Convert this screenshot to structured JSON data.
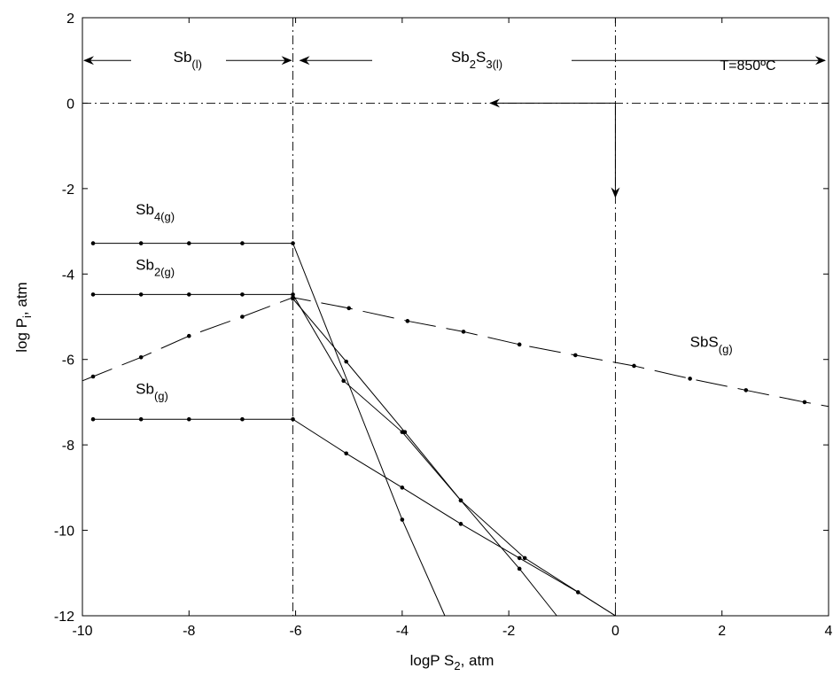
{
  "chart_data": {
    "type": "line",
    "title": "",
    "xlabel": "logP S",
    "xlabel_sub": "2",
    "xlabel_suffix": ", atm",
    "ylabel": "log  P",
    "ylabel_sub": "i",
    "ylabel_suffix": ", atm",
    "xlim": [
      -10,
      4
    ],
    "ylim": [
      -12,
      2
    ],
    "xticks": [
      -10,
      -8,
      -6,
      -4,
      -2,
      0,
      2,
      4
    ],
    "yticks": [
      -12,
      -10,
      -8,
      -6,
      -4,
      -2,
      0,
      2
    ],
    "xtick_labels": [
      "-10",
      "-8",
      "-6",
      "-4",
      "-2",
      "0",
      "2",
      "4"
    ],
    "ytick_labels": [
      "-12",
      "-10",
      "-8",
      "-6",
      "-4",
      "-2",
      "0",
      "2"
    ],
    "grid": false,
    "vertical_lines": [
      {
        "x": -6.05,
        "style": "dashdot"
      },
      {
        "x": 0,
        "style": "dashdot"
      }
    ],
    "horizontal_lines": [
      {
        "y": 0,
        "style": "dashdot"
      }
    ],
    "temperature_label": "T=850ºC",
    "phase_regions": [
      {
        "label": "Sb",
        "sub": "(l)",
        "x_from": -10,
        "x_to": -6.05
      },
      {
        "label": "Sb",
        "mid": "2",
        "label2": "S",
        "sub": "3(l)",
        "x_from": -6.05,
        "x_to": 4
      }
    ],
    "series": [
      {
        "name": "Sb",
        "name_sub": "4(g)",
        "style": "solid",
        "x": [
          -9.8,
          -8.9,
          -8.0,
          -7.0,
          -6.05,
          -4.0,
          -3.2
        ],
        "y": [
          -3.28,
          -3.28,
          -3.28,
          -3.28,
          -3.28,
          -9.75,
          -12.0
        ]
      },
      {
        "name": "Sb",
        "name_sub": "2(g)",
        "style": "solid",
        "x": [
          -9.8,
          -8.9,
          -8.0,
          -7.0,
          -6.05,
          -5.1,
          -4.0,
          -2.9,
          -1.8,
          -1.1
        ],
        "y": [
          -4.48,
          -4.48,
          -4.48,
          -4.48,
          -4.48,
          -6.5,
          -7.7,
          -9.3,
          -10.9,
          -12.0
        ]
      },
      {
        "name": "Sb",
        "name_sub": "(g)",
        "style": "solid",
        "x": [
          -9.8,
          -8.9,
          -8.0,
          -7.0,
          -6.05,
          -5.05,
          -4.0,
          -2.9,
          -1.8,
          -0.7,
          0
        ],
        "y": [
          -7.4,
          -7.4,
          -7.4,
          -7.4,
          -7.4,
          -8.2,
          -9.0,
          -9.85,
          -10.65,
          -11.45,
          -12.0
        ]
      },
      {
        "name": "SbS",
        "name_sub": "(g)",
        "style": "dashed",
        "x": [
          -10,
          -9.8,
          -8.9,
          -8.0,
          -7.0,
          -6.05,
          -5.0,
          -3.9,
          -2.85,
          -1.8,
          -0.75,
          0.35,
          1.4,
          2.45,
          3.55,
          4
        ],
        "y": [
          -6.5,
          -6.4,
          -5.95,
          -5.45,
          -5.0,
          -4.55,
          -4.8,
          -5.1,
          -5.35,
          -5.65,
          -5.9,
          -6.15,
          -6.45,
          -6.72,
          -7.0,
          -7.1
        ]
      },
      {
        "name": "",
        "style": "solid",
        "x": [
          -6.05,
          -5.05,
          -3.95,
          -2.9,
          -1.7,
          0
        ],
        "y": [
          -4.58,
          -6.05,
          -7.7,
          -9.3,
          -10.65,
          -12.0
        ]
      }
    ],
    "arrow_label_x": -2.6
  }
}
